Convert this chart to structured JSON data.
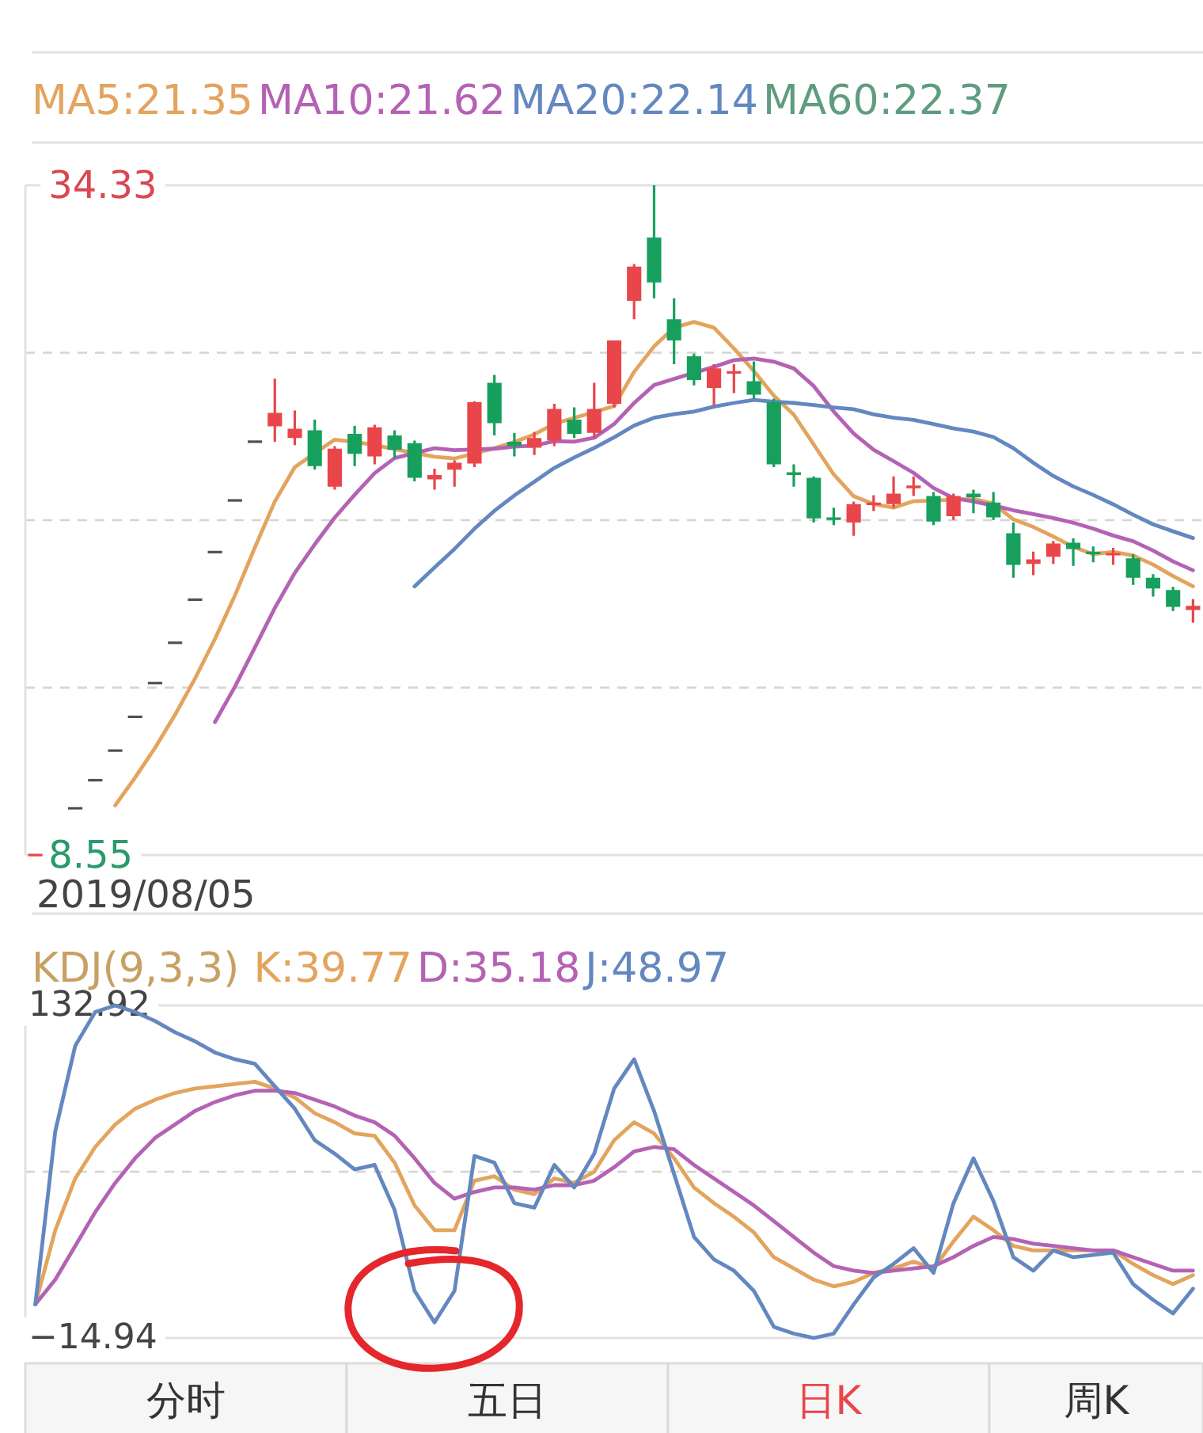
{
  "chart_data": [
    {
      "type": "candlestick",
      "categories": [
        null,
        null,
        null,
        null,
        null,
        null,
        null,
        null,
        null,
        null,
        null,
        null,
        null,
        null,
        null,
        null,
        null,
        null,
        null,
        null,
        null,
        null,
        null,
        null,
        null,
        null,
        null,
        null,
        null,
        null,
        null,
        null,
        null,
        null,
        null,
        null,
        null,
        null,
        null,
        null,
        null,
        null,
        null,
        null,
        null,
        null,
        null,
        null,
        null,
        null,
        null,
        null,
        null,
        null,
        null,
        null,
        null,
        null,
        null
      ],
      "ohlc": [
        [
          8.55,
          8.55,
          8.55,
          8.55
        ],
        null,
        [
          10.35,
          10.35,
          10.35,
          10.35
        ],
        [
          11.43,
          11.43,
          11.43,
          11.43
        ],
        [
          12.57,
          12.57,
          12.57,
          12.57
        ],
        [
          13.87,
          13.87,
          13.87,
          13.87
        ],
        [
          15.17,
          15.17,
          15.17,
          15.17
        ],
        [
          16.72,
          16.72,
          16.72,
          16.72
        ],
        [
          18.38,
          18.38,
          18.38,
          18.38
        ],
        [
          20.21,
          20.21,
          20.21,
          20.21
        ],
        [
          22.2,
          22.2,
          22.2,
          22.2
        ],
        [
          24.46,
          24.46,
          24.46,
          24.46
        ],
        [
          25.05,
          26.89,
          24.46,
          25.57
        ],
        [
          24.6,
          25.66,
          24.33,
          24.96
        ],
        [
          24.9,
          25.31,
          23.38,
          23.52
        ],
        [
          22.73,
          24.29,
          22.61,
          24.19
        ],
        [
          24.76,
          25.07,
          23.52,
          23.99
        ],
        [
          23.89,
          25.11,
          23.59,
          25.01
        ],
        [
          24.7,
          24.9,
          23.83,
          24.15
        ],
        [
          24.4,
          24.5,
          22.93,
          23.07
        ],
        [
          23.01,
          23.42,
          22.61,
          23.18
        ],
        [
          23.38,
          23.74,
          22.73,
          23.65
        ],
        [
          23.62,
          26.02,
          23.48,
          25.98
        ],
        [
          26.73,
          27.03,
          24.7,
          25.17
        ],
        [
          24.46,
          24.8,
          23.89,
          24.29
        ],
        [
          24.23,
          24.84,
          23.95,
          24.6
        ],
        [
          24.5,
          25.92,
          24.29,
          25.72
        ],
        [
          25.31,
          25.78,
          24.6,
          24.76
        ],
        [
          24.8,
          26.73,
          24.6,
          25.72
        ],
        [
          25.92,
          28.36,
          25.78,
          28.36
        ],
        [
          29.88,
          31.3,
          29.17,
          31.2
        ],
        [
          32.32,
          34.33,
          29.98,
          30.59
        ],
        [
          29.17,
          29.98,
          27.44,
          28.36
        ],
        [
          27.75,
          27.85,
          26.63,
          26.83
        ],
        [
          26.53,
          27.44,
          25.86,
          27.28
        ],
        [
          27.08,
          27.44,
          26.33,
          27.18
        ],
        [
          26.79,
          27.55,
          26.12,
          26.27
        ],
        [
          25.98,
          26.12,
          23.48,
          23.59
        ],
        [
          23.28,
          23.59,
          22.73,
          23.18
        ],
        [
          23.07,
          23.12,
          21.35,
          21.51
        ],
        [
          21.55,
          21.92,
          21.25,
          21.45
        ],
        [
          21.35,
          22.16,
          20.84,
          22.06
        ],
        [
          22.02,
          22.4,
          21.79,
          22.12
        ],
        [
          22.06,
          23.12,
          21.92,
          22.46
        ],
        [
          22.67,
          23.12,
          22.37,
          22.77
        ],
        [
          22.37,
          22.52,
          21.25,
          21.39
        ],
        [
          21.59,
          22.46,
          21.45,
          22.37
        ],
        [
          22.46,
          22.61,
          21.71,
          22.32
        ],
        [
          22.12,
          22.52,
          21.45,
          21.55
        ],
        [
          20.94,
          21.35,
          19.22,
          19.72
        ],
        [
          19.76,
          20.23,
          19.32,
          19.93
        ],
        [
          20.03,
          20.64,
          19.76,
          20.54
        ],
        [
          20.57,
          20.74,
          19.68,
          20.33
        ],
        [
          20.23,
          20.43,
          19.82,
          20.13
        ],
        [
          20.09,
          20.37,
          19.72,
          20.17
        ],
        [
          19.97,
          20.13,
          18.95,
          19.22
        ],
        [
          19.22,
          19.36,
          18.5,
          18.81
        ],
        [
          18.75,
          18.87,
          17.94,
          18.1
        ],
        [
          17.98,
          18.4,
          17.49,
          18.14
        ]
      ],
      "colors": [
        "#e8464b",
        null,
        "#505050",
        "#505050",
        "#505050",
        "#505050",
        "#505050",
        "#505050",
        "#505050",
        "#505050",
        "#505050",
        "#505050",
        "#e8464b",
        "#e8464b",
        "#17a05d",
        "#e8464b",
        "#17a05d",
        "#e8464b",
        "#17a05d",
        "#17a05d",
        "#e8464b",
        "#e8464b",
        "#e8464b",
        "#17a05d",
        "#17a05d",
        "#e8464b",
        "#e8464b",
        "#17a05d",
        "#e8464b",
        "#e8464b",
        "#e8464b",
        "#17a05d",
        "#17a05d",
        "#17a05d",
        "#e8464b",
        "#e8464b",
        "#17a05d",
        "#17a05d",
        "#17a05d",
        "#17a05d",
        "#17a05d",
        "#e8464b",
        "#e8464b",
        "#e8464b",
        "#e8464b",
        "#17a05d",
        "#e8464b",
        "#17a05d",
        "#17a05d",
        "#17a05d",
        "#e8464b",
        "#e8464b",
        "#17a05d",
        "#17a05d",
        "#e8464b",
        "#17a05d",
        "#17a05d",
        "#17a05d",
        "#e8464b"
      ],
      "series": [
        {
          "name": "MA5:21.35",
          "color": "#e3a45e",
          "type": "line",
          "values": [
            null,
            null,
            null,
            null,
            10.46,
            11.53,
            12.68,
            13.95,
            15.34,
            16.87,
            18.54,
            20.39,
            22.16,
            23.48,
            null,
            24.54,
            24.45,
            24.33,
            24.17,
            null,
            23.88,
            23.81,
            null,
            24.21,
            24.45,
            24.74,
            25.15,
            null,
            null,
            25.83,
            27.15,
            28.13,
            28.85,
            29.07,
            28.85,
            28.05,
            27.18,
            26.23,
            25.5,
            24.35,
            23.2,
            22.36,
            22.06,
            21.92,
            22.17,
            null,
            22.22,
            22.26,
            22.08,
            21.47,
            21.18,
            20.81,
            20.41,
            20.13,
            20.22,
            20.08,
            19.73,
            19.29,
            18.89
          ]
        },
        {
          "name": "MA10:21.62",
          "color": "#b462b4",
          "type": "line",
          "values": [
            null,
            null,
            null,
            null,
            null,
            null,
            null,
            null,
            null,
            13.67,
            15.03,
            16.54,
            18.06,
            19.41,
            20.51,
            21.54,
            22.42,
            23.25,
            23.83,
            null,
            24.21,
            24.13,
            null,
            24.19,
            24.27,
            24.31,
            24.48,
            24.46,
            24.61,
            25.14,
            25.95,
            26.64,
            26.88,
            null,
            27.34,
            27.6,
            27.66,
            27.54,
            27.28,
            26.6,
            25.62,
            24.77,
            24.15,
            23.71,
            23.26,
            22.68,
            22.29,
            22.16,
            22.0,
            21.82,
            21.67,
            21.52,
            21.34,
            21.11,
            20.85,
            20.63,
            20.27,
            19.85,
            19.51
          ]
        },
        {
          "name": "MA20:22.14",
          "color": "#6388c0",
          "type": "line",
          "values": [
            null,
            null,
            null,
            null,
            null,
            null,
            null,
            null,
            null,
            null,
            null,
            null,
            null,
            null,
            null,
            null,
            null,
            null,
            null,
            18.89,
            19.62,
            20.33,
            21.11,
            21.8,
            22.39,
            22.92,
            23.45,
            23.85,
            24.22,
            24.63,
            25.08,
            25.38,
            25.52,
            25.62,
            25.81,
            25.95,
            26.07,
            26.0,
            25.95,
            25.87,
            25.78,
            25.71,
            25.51,
            25.38,
            25.3,
            25.14,
            24.97,
            24.85,
            24.64,
            24.21,
            23.65,
            23.14,
            22.74,
            22.41,
            22.05,
            21.65,
            21.28,
            21.01,
            20.75
          ]
        },
        {
          "name": "MA60:22.37",
          "color": "#5f9c80",
          "type": "line",
          "values": [
            null,
            null,
            null,
            null,
            null,
            null,
            null,
            null,
            null,
            null,
            null,
            null,
            null,
            null,
            null,
            null,
            null,
            null,
            null,
            null,
            null,
            null,
            null,
            null,
            null,
            null,
            null,
            null,
            null,
            null,
            null,
            null,
            null,
            null,
            null,
            null,
            null,
            null,
            null,
            null,
            null,
            null,
            null,
            null,
            null,
            null,
            null,
            null,
            null,
            null,
            null,
            null,
            null,
            null,
            null,
            null,
            null,
            null,
            null
          ]
        }
      ],
      "ylim": [
        8.55,
        34.33
      ],
      "yticks": [
        8.55,
        {
          "value": 14.995,
          "label": null
        },
        {
          "value": 21.44,
          "label": null
        },
        {
          "value": 27.885,
          "label": null
        },
        34.33
      ],
      "grid": "y",
      "legend": "top left",
      "annotations": [
        "2019/08/05"
      ]
    },
    {
      "type": "line",
      "title": "KDJ(9,3,3)",
      "categories": [
        null,
        null,
        null,
        null,
        null,
        null,
        null,
        null,
        null,
        null,
        null,
        null,
        null,
        null,
        null,
        null,
        null,
        null,
        null,
        null,
        null,
        null,
        null,
        null,
        null,
        null,
        null,
        null,
        null,
        null,
        null,
        null,
        null,
        null,
        null,
        null,
        null,
        null,
        null,
        null,
        null,
        null,
        null,
        null,
        null,
        null,
        null,
        null,
        null,
        null,
        null,
        null,
        null,
        null,
        null,
        null,
        null,
        null,
        null
      ],
      "series": [
        {
          "name": "K:39.77",
          "color": "#e3a45e",
          "values": [
            0,
            33,
            56,
            70,
            80,
            87,
            91,
            94,
            96,
            97,
            98,
            99,
            96,
            92,
            85,
            81,
            76,
            75,
            63,
            44,
            33,
            33,
            55,
            57,
            51,
            49,
            56,
            54,
            59,
            73,
            81,
            76,
            65,
            52,
            45,
            39,
            32,
            21,
            16,
            11,
            8,
            10,
            14,
            16,
            19,
            16,
            28,
            39,
            33,
            26,
            24,
            24,
            24,
            24,
            24,
            18,
            13,
            9,
            13
          ]
        },
        {
          "name": "D:35.18",
          "color": "#b462b4",
          "values": [
            0,
            11,
            26,
            41,
            54,
            65,
            74,
            80,
            86,
            90,
            93,
            95,
            95,
            94,
            91,
            88,
            84,
            81,
            75,
            65,
            54,
            47,
            50,
            52,
            52,
            51,
            53,
            53,
            55,
            61,
            68,
            70,
            69,
            62,
            56,
            50,
            44,
            37,
            30,
            23,
            17,
            15,
            14,
            15,
            16,
            17,
            21,
            26,
            30,
            29,
            27,
            26,
            25,
            24,
            24,
            21,
            18,
            15,
            15
          ]
        },
        {
          "name": "J:48.97",
          "color": "#6388c0",
          "values": [
            0,
            77,
            115,
            130,
            132.92,
            130,
            126,
            121,
            117,
            112,
            109,
            107,
            97,
            87,
            73,
            67,
            60,
            62,
            42,
            6,
            -8,
            6,
            66,
            63,
            45,
            43,
            62,
            52,
            67,
            96,
            109,
            86,
            58,
            30,
            20,
            15,
            6,
            -10,
            -13,
            -14.94,
            -13,
            0,
            12,
            18,
            25,
            14,
            45,
            65,
            46,
            21,
            15,
            24,
            21,
            22,
            23,
            9,
            2,
            -4,
            7
          ]
        }
      ],
      "ylim": [
        -14.94,
        132.92
      ],
      "yticks": [
        {
          "value": -14.94,
          "label": "−14.94"
        },
        {
          "value": 58.99,
          "label": null
        },
        132.92
      ],
      "grid": "y",
      "legend": "top left",
      "tick_labels": "y"
    },
    {
      "type": "other",
      "annotations": [
        "分时",
        "五日",
        "日K",
        "周K"
      ]
    }
  ]
}
